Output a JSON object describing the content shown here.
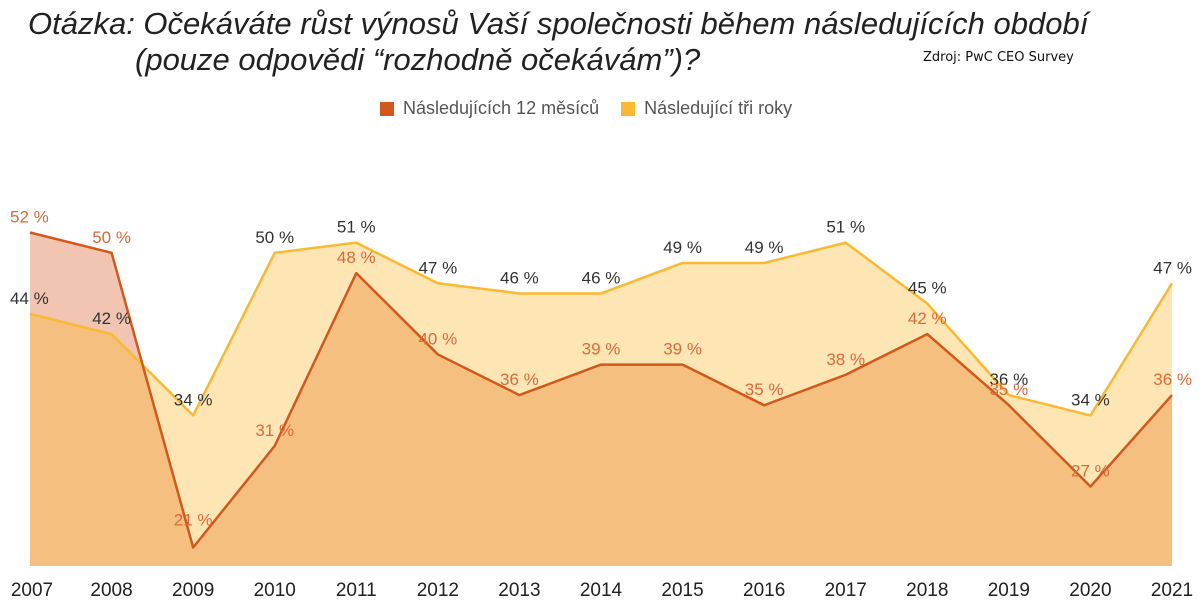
{
  "title_line1": "Otázka: Očekáváte růst výnosů Vaší společnosti během následujících období",
  "title_line2": "(pouze odpovědi “rozhodně očekávám”)?",
  "source": "Zdroj: PwC CEO Survey",
  "colors": {
    "series_12m_line": "#d4581a",
    "series_12m_fill": "#f5c07f",
    "series_3y_line": "#fbb930",
    "series_3y_fill": "#fde6b4",
    "overlap_fill": "#f1c5b2",
    "label_12m": "#e2683a",
    "label_3y": "#333333"
  },
  "chart_data": {
    "type": "area",
    "title": "Otázka: Očekáváte růst výnosů Vaší společnosti během následujících období (pouze odpovědi “rozhodně očekávám”)?",
    "xlabel": "",
    "ylabel": "",
    "ylim": [
      18,
      55
    ],
    "grid": false,
    "legend_position": "top-center",
    "categories": [
      "2007",
      "2008",
      "2009",
      "2010",
      "2011",
      "2012",
      "2013",
      "2014",
      "2015",
      "2016",
      "2017",
      "2018",
      "2019",
      "2020",
      "2021"
    ],
    "series": [
      {
        "name": "Následujících 12 měsíců",
        "values": [
          52,
          50,
          21,
          31,
          48,
          40,
          36,
          39,
          39,
          35,
          38,
          42,
          35,
          27,
          36
        ],
        "labels": [
          "52 %",
          "50 %",
          "21 %",
          "31 %",
          "48 %",
          "40 %",
          "36 %",
          "39 %",
          "39 %",
          "35 %",
          "38 %",
          "42 %",
          "35 %",
          "27 %",
          "36 %"
        ]
      },
      {
        "name": "Následující tři roky",
        "values": [
          44,
          42,
          34,
          50,
          51,
          47,
          46,
          46,
          49,
          49,
          51,
          45,
          36,
          34,
          47
        ],
        "labels": [
          "44 %",
          "42 %",
          "34 %",
          "50 %",
          "51 %",
          "47 %",
          "46 %",
          "46 %",
          "49 %",
          "49 %",
          "51 %",
          "45 %",
          "36 %",
          "34 %",
          "47 %"
        ]
      }
    ]
  }
}
